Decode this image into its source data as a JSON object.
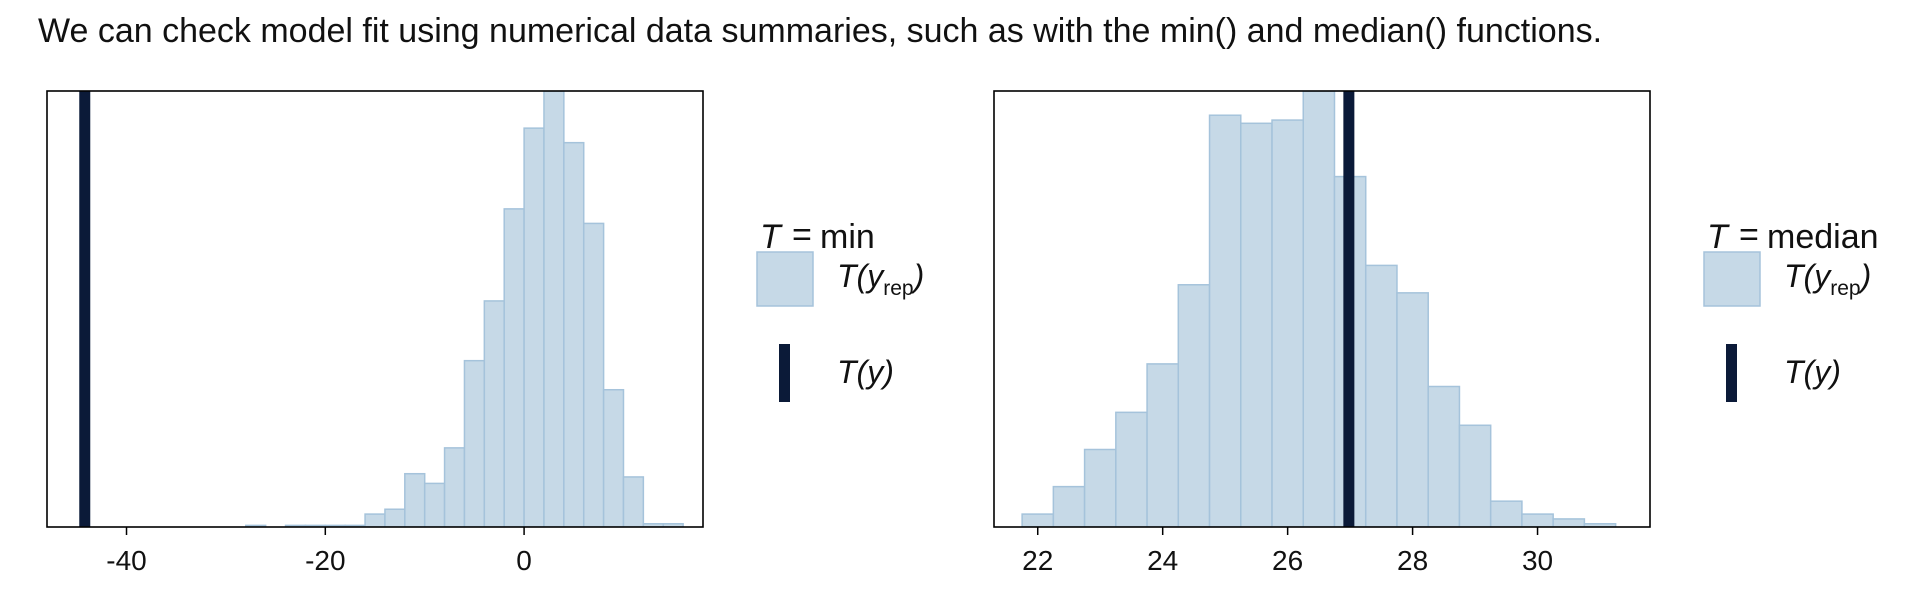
{
  "caption": "We can check model fit using numerical data summaries, such as with the min() and median() functions.",
  "colors": {
    "bar_fill": "#c6d9e7",
    "bar_stroke": "#a5c3db",
    "observed_line": "#0b1a38",
    "panel_border": "#000000"
  },
  "legend_common": {
    "T": "T",
    "yrep_pre": "T(",
    "yrep_y": "y",
    "yrep_sub": "rep",
    "yrep_post": ")",
    "y_text": "T(y)"
  },
  "chart_data": [
    {
      "type": "histogram",
      "statistic_label": "min",
      "legend_title_eq": "=",
      "xlim": [
        -48,
        18
      ],
      "ylim": [
        0,
        270
      ],
      "xticks": [
        -40,
        -20,
        0
      ],
      "bins": [
        {
          "x0": -28,
          "x1": -26,
          "count": 1
        },
        {
          "x0": -24,
          "x1": -22,
          "count": 1
        },
        {
          "x0": -22,
          "x1": -20,
          "count": 1
        },
        {
          "x0": -20,
          "x1": -18,
          "count": 1
        },
        {
          "x0": -18,
          "x1": -16,
          "count": 1
        },
        {
          "x0": -16,
          "x1": -14,
          "count": 8
        },
        {
          "x0": -14,
          "x1": -12,
          "count": 11
        },
        {
          "x0": -12,
          "x1": -10,
          "count": 33
        },
        {
          "x0": -10,
          "x1": -8,
          "count": 27
        },
        {
          "x0": -8,
          "x1": -6,
          "count": 49
        },
        {
          "x0": -6,
          "x1": -4,
          "count": 103
        },
        {
          "x0": -4,
          "x1": -2,
          "count": 140
        },
        {
          "x0": -2,
          "x1": 0,
          "count": 197
        },
        {
          "x0": 0,
          "x1": 2,
          "count": 247
        },
        {
          "x0": 2,
          "x1": 4,
          "count": 270
        },
        {
          "x0": 4,
          "x1": 6,
          "count": 238
        },
        {
          "x0": 6,
          "x1": 8,
          "count": 188
        },
        {
          "x0": 8,
          "x1": 10,
          "count": 85
        },
        {
          "x0": 10,
          "x1": 12,
          "count": 31
        },
        {
          "x0": 12,
          "x1": 14,
          "count": 2
        },
        {
          "x0": 14,
          "x1": 16,
          "count": 2
        }
      ],
      "observed": -44.2
    },
    {
      "type": "histogram",
      "statistic_label": "median",
      "legend_title_eq": "=",
      "xlim": [
        21.3,
        31.8
      ],
      "ylim": [
        0,
        270
      ],
      "xticks": [
        22,
        24,
        26,
        28,
        30
      ],
      "bins": [
        {
          "x0": 21.75,
          "x1": 22.25,
          "count": 8
        },
        {
          "x0": 22.25,
          "x1": 22.75,
          "count": 25
        },
        {
          "x0": 22.75,
          "x1": 23.25,
          "count": 48
        },
        {
          "x0": 23.25,
          "x1": 23.75,
          "count": 71
        },
        {
          "x0": 23.75,
          "x1": 24.25,
          "count": 101
        },
        {
          "x0": 24.25,
          "x1": 24.75,
          "count": 150
        },
        {
          "x0": 24.75,
          "x1": 25.25,
          "count": 255
        },
        {
          "x0": 25.25,
          "x1": 25.75,
          "count": 250
        },
        {
          "x0": 25.75,
          "x1": 26.25,
          "count": 252
        },
        {
          "x0": 26.25,
          "x1": 26.75,
          "count": 270
        },
        {
          "x0": 26.75,
          "x1": 27.25,
          "count": 217
        },
        {
          "x0": 27.25,
          "x1": 27.75,
          "count": 162
        },
        {
          "x0": 27.75,
          "x1": 28.25,
          "count": 145
        },
        {
          "x0": 28.25,
          "x1": 28.75,
          "count": 87
        },
        {
          "x0": 28.75,
          "x1": 29.25,
          "count": 63
        },
        {
          "x0": 29.25,
          "x1": 29.75,
          "count": 16
        },
        {
          "x0": 29.75,
          "x1": 30.25,
          "count": 8
        },
        {
          "x0": 30.25,
          "x1": 30.75,
          "count": 5
        },
        {
          "x0": 30.75,
          "x1": 31.25,
          "count": 2
        }
      ],
      "observed": 26.98
    }
  ]
}
